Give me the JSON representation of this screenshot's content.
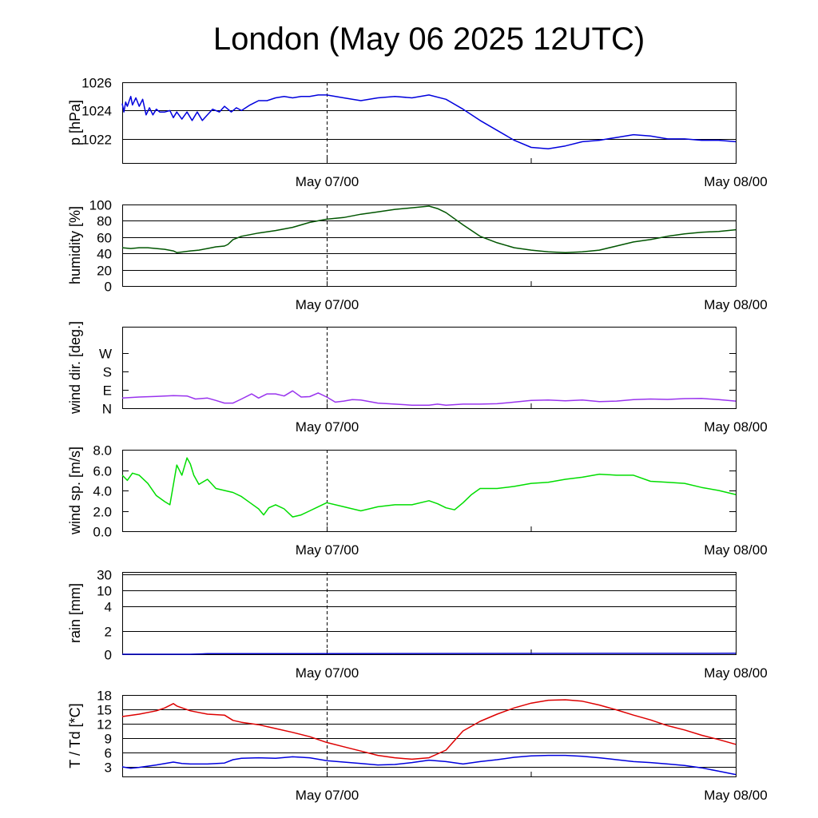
{
  "title": "London (May 06 2025 12UTC)",
  "x_tick_labels": [
    "May 07/00",
    "May 08/00"
  ],
  "chart_data": [
    {
      "type": "line",
      "ylabel": "p [hPa]",
      "ylim": [
        1020.3,
        1026
      ],
      "yticks": [
        1022,
        1024,
        1026
      ],
      "ytick_labels": [
        "1022",
        "1024",
        "1026"
      ],
      "grid": true,
      "xlim": [
        0,
        36
      ],
      "series": [
        {
          "color": "#0000dd",
          "x": [
            0,
            0.1,
            0.2,
            0.3,
            0.5,
            0.6,
            0.8,
            1.0,
            1.2,
            1.4,
            1.6,
            1.8,
            2.0,
            2.2,
            2.5,
            2.8,
            3.0,
            3.2,
            3.5,
            3.8,
            4.1,
            4.4,
            4.7,
            5.0,
            5.3,
            5.7,
            6.0,
            6.4,
            6.7,
            7.0,
            7.5,
            8.0,
            8.5,
            9.0,
            9.5,
            10.0,
            10.5,
            11.0,
            11.5,
            12.0,
            13.0,
            14.0,
            14.5,
            15.0,
            16.0,
            17.0,
            18.0,
            19.0,
            20.0,
            21.0,
            22.0,
            23.0,
            24.0,
            25.0,
            26.0,
            27.0,
            28.0,
            29.0,
            30.0,
            31.0,
            32.0,
            33.0,
            34.0,
            35.0,
            36.0
          ],
          "y": [
            1024.5,
            1023.9,
            1024.6,
            1024.3,
            1025.0,
            1024.4,
            1024.9,
            1024.3,
            1024.8,
            1023.7,
            1024.2,
            1023.7,
            1024.1,
            1023.9,
            1023.9,
            1024.0,
            1023.5,
            1023.9,
            1023.4,
            1023.9,
            1023.3,
            1023.9,
            1023.3,
            1023.7,
            1024.1,
            1023.9,
            1024.3,
            1023.9,
            1024.2,
            1024.0,
            1024.4,
            1024.7,
            1024.7,
            1024.9,
            1025.0,
            1024.9,
            1025.0,
            1025.0,
            1025.1,
            1025.1,
            1024.9,
            1024.7,
            1024.8,
            1024.9,
            1025.0,
            1024.9,
            1025.1,
            1024.8,
            1024.1,
            1023.3,
            1022.6,
            1021.9,
            1021.4,
            1021.3,
            1021.5,
            1021.8,
            1021.9,
            1022.1,
            1022.3,
            1022.2,
            1022.0,
            1022.0,
            1021.9,
            1021.9,
            1021.8
          ]
        }
      ]
    },
    {
      "type": "line",
      "ylabel": "humidity [%]",
      "ylim": [
        0,
        100
      ],
      "yticks": [
        0,
        20,
        40,
        60,
        80,
        100
      ],
      "ytick_labels": [
        "0",
        "20",
        "40",
        "60",
        "80",
        "100"
      ],
      "grid": true,
      "xlim": [
        0,
        36
      ],
      "series": [
        {
          "color": "#005500",
          "x": [
            0,
            0.5,
            1,
            1.5,
            2,
            2.5,
            3,
            3.2,
            3.6,
            4,
            4.5,
            5,
            5.5,
            6,
            6.2,
            6.5,
            7,
            8,
            9,
            10,
            11,
            12,
            13,
            14,
            15,
            16,
            17,
            18,
            18.5,
            19,
            20,
            21,
            22,
            23,
            24,
            25,
            26,
            27,
            28,
            29,
            30,
            31,
            32,
            33,
            34,
            35,
            36
          ],
          "y": [
            47,
            46,
            47,
            47,
            46,
            45,
            43,
            41,
            42,
            43,
            44,
            46,
            48,
            49,
            51,
            57,
            61,
            65,
            68,
            72,
            78,
            82,
            84,
            88,
            91,
            94,
            96,
            98,
            95,
            90,
            75,
            61,
            53,
            47,
            44,
            42,
            41,
            42,
            44,
            49,
            54,
            57,
            61,
            64,
            66,
            67,
            69
          ]
        }
      ]
    },
    {
      "type": "line",
      "ylabel": "wind dir. [deg.]",
      "ylim": [
        0,
        400
      ],
      "yticks": [
        0,
        90,
        180,
        270
      ],
      "ytick_labels": [
        "N",
        "E",
        "S",
        "W"
      ],
      "grid": false,
      "xlim": [
        0,
        36
      ],
      "series": [
        {
          "color": "#9933ee",
          "x": [
            0,
            1,
            2,
            3,
            3.8,
            4.3,
            5,
            5.5,
            6,
            6.5,
            7,
            7.6,
            8,
            8.5,
            9,
            9.5,
            10,
            10.5,
            11,
            11.5,
            12,
            12.5,
            13,
            13.5,
            14,
            15,
            16,
            17,
            18,
            18.5,
            19,
            20,
            21,
            22,
            23,
            24,
            25,
            26,
            27,
            28,
            29,
            30,
            31,
            32,
            33,
            34,
            35,
            36
          ],
          "y": [
            50,
            55,
            58,
            62,
            60,
            45,
            50,
            38,
            25,
            25,
            45,
            70,
            50,
            70,
            70,
            60,
            85,
            55,
            57,
            75,
            55,
            30,
            35,
            42,
            40,
            25,
            20,
            15,
            15,
            20,
            15,
            20,
            20,
            22,
            30,
            38,
            40,
            36,
            40,
            32,
            35,
            42,
            45,
            43,
            47,
            48,
            42,
            35
          ]
        }
      ]
    },
    {
      "type": "line",
      "ylabel": "wind sp. [m/s]",
      "ylim": [
        0,
        8
      ],
      "yticks": [
        0,
        2,
        4,
        6,
        8
      ],
      "ytick_labels": [
        "0.0",
        "2.0",
        "4.0",
        "6.0",
        "8.0"
      ],
      "grid": false,
      "xlim": [
        0,
        36
      ],
      "series": [
        {
          "color": "#00dd00",
          "x": [
            0,
            0.3,
            0.6,
            1,
            1.5,
            2,
            2.5,
            2.8,
            3.2,
            3.5,
            3.8,
            4.0,
            4.2,
            4.5,
            5,
            5.5,
            6,
            6.5,
            7,
            7.5,
            8,
            8.3,
            8.6,
            9,
            9.5,
            10,
            10.5,
            11,
            11.5,
            12,
            13,
            14,
            15,
            16,
            17,
            18,
            18.5,
            19,
            19.5,
            20,
            20.5,
            21,
            22,
            23,
            24,
            25,
            26,
            27,
            28,
            29,
            30,
            31,
            32,
            33,
            34,
            35,
            36
          ],
          "y": [
            5.5,
            5.0,
            5.7,
            5.5,
            4.7,
            3.5,
            2.9,
            2.6,
            6.5,
            5.5,
            7.2,
            6.6,
            5.5,
            4.6,
            5.1,
            4.2,
            4.0,
            3.8,
            3.4,
            2.8,
            2.2,
            1.6,
            2.3,
            2.6,
            2.2,
            1.4,
            1.6,
            2.0,
            2.4,
            2.8,
            2.4,
            2.0,
            2.4,
            2.6,
            2.6,
            3.0,
            2.7,
            2.3,
            2.1,
            2.8,
            3.6,
            4.2,
            4.2,
            4.4,
            4.7,
            4.8,
            5.1,
            5.3,
            5.6,
            5.5,
            5.5,
            4.9,
            4.8,
            4.7,
            4.3,
            4.0,
            3.6
          ]
        }
      ]
    },
    {
      "type": "line",
      "ylabel": "rain [mm]",
      "ylim": [
        0,
        30
      ],
      "yticks": [
        0,
        2,
        4,
        10,
        30
      ],
      "ytick_labels": [
        "0",
        "2",
        "4",
        "10",
        "30"
      ],
      "grid": true,
      "xlim": [
        0,
        36
      ],
      "series": [
        {
          "color": "#0000cc",
          "x": [
            0,
            4,
            5,
            36
          ],
          "y": [
            0,
            0,
            0.05,
            0.08
          ]
        }
      ]
    },
    {
      "type": "line",
      "ylabel": "T / Td [*C]",
      "ylim": [
        1,
        18
      ],
      "yticks": [
        3,
        6,
        9,
        12,
        15,
        18
      ],
      "ytick_labels": [
        "3",
        "6",
        "9",
        "12",
        "15",
        "18"
      ],
      "grid": true,
      "xlim": [
        0,
        36
      ],
      "series": [
        {
          "color": "#dd0000",
          "x": [
            0,
            1,
            2,
            2.5,
            3,
            3.2,
            3.6,
            4,
            5,
            6,
            6.5,
            7,
            8,
            9,
            10,
            11,
            12,
            13,
            14,
            15,
            16,
            17,
            18,
            19,
            20,
            21,
            22,
            23,
            24,
            25,
            26,
            27,
            28,
            29,
            30,
            31,
            32,
            33,
            34,
            35,
            36
          ],
          "y": [
            13.5,
            14.0,
            14.7,
            15.3,
            16.2,
            15.7,
            15.2,
            14.7,
            14.0,
            13.8,
            12.7,
            12.3,
            11.8,
            11.0,
            10.2,
            9.3,
            8.1,
            7.2,
            6.3,
            5.4,
            4.9,
            4.6,
            4.9,
            6.5,
            10.5,
            12.5,
            14.0,
            15.3,
            16.3,
            16.9,
            17.0,
            16.7,
            15.9,
            14.9,
            13.8,
            12.8,
            11.6,
            10.7,
            9.6,
            8.7,
            7.7
          ]
        },
        {
          "color": "#0000dd",
          "x": [
            0,
            0.5,
            1,
            2,
            3,
            3.5,
            4,
            5,
            6,
            6.5,
            7,
            8,
            9,
            10,
            11,
            12,
            13,
            14,
            15,
            16,
            17,
            18,
            19,
            20,
            21,
            22,
            23,
            24,
            25,
            26,
            27,
            28,
            29,
            30,
            31,
            32,
            33,
            34,
            35,
            36
          ],
          "y": [
            3.0,
            2.7,
            2.9,
            3.4,
            4.0,
            3.7,
            3.6,
            3.6,
            3.8,
            4.5,
            4.8,
            4.9,
            4.8,
            5.1,
            4.9,
            4.3,
            4.0,
            3.7,
            3.4,
            3.5,
            3.9,
            4.4,
            4.1,
            3.6,
            4.1,
            4.5,
            5.0,
            5.3,
            5.4,
            5.4,
            5.2,
            4.9,
            4.5,
            4.1,
            3.9,
            3.6,
            3.3,
            2.8,
            2.1,
            1.4
          ]
        }
      ]
    }
  ]
}
